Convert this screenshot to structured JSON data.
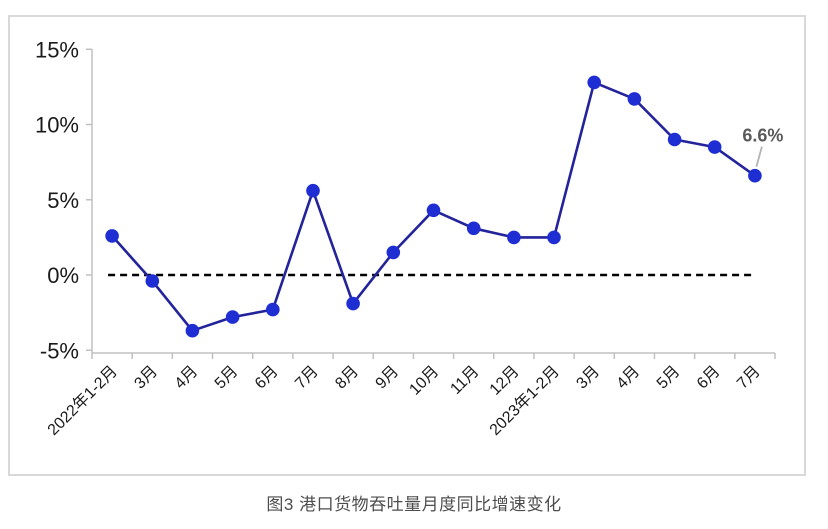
{
  "figure": {
    "caption": "图3 港口货物吞吐量月度同比增速变化"
  },
  "chart_data": {
    "type": "line",
    "title": "",
    "xlabel": "",
    "ylabel": "",
    "categories": [
      "2022年1-2月",
      "3月",
      "4月",
      "5月",
      "6月",
      "7月",
      "8月",
      "9月",
      "10月",
      "11月",
      "12月",
      "2023年1-2月",
      "3月",
      "4月",
      "5月",
      "6月",
      "7月"
    ],
    "values": [
      2.6,
      -0.4,
      -3.7,
      -2.8,
      -2.3,
      5.6,
      -1.9,
      1.5,
      4.3,
      3.1,
      2.5,
      2.5,
      12.8,
      11.7,
      9.0,
      8.5,
      6.6
    ],
    "ylim": [
      -5,
      15
    ],
    "ytick_values": [
      15,
      10,
      5,
      0,
      -5
    ],
    "ytick_labels": [
      "15%",
      "10%",
      "5%",
      "0%",
      "-5%"
    ],
    "zero_line": {
      "value": 0,
      "style": "dashed"
    },
    "annotation": {
      "text": "6.6%",
      "target_index": 16
    },
    "legend": "none",
    "grid": "off",
    "colors": {
      "line": "#23239b",
      "marker": "#1f2ed2",
      "zero_line": "#000000",
      "axis": "#c0c0c0",
      "tick_label": "#1a1a1a",
      "annotation_text": "#595959",
      "leader_line": "#b3b3b3",
      "border": "#d9d9d9",
      "caption": "#4d4d4d",
      "background": "#ffffff"
    }
  }
}
